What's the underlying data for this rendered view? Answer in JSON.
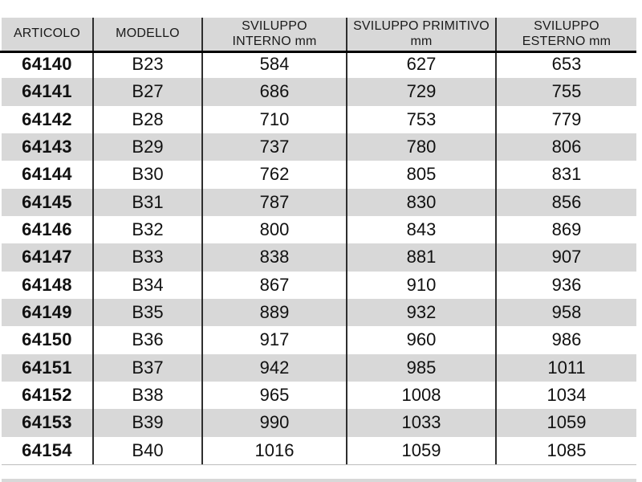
{
  "table": {
    "columns": [
      {
        "id": "articolo",
        "label": "ARTICOLO"
      },
      {
        "id": "modello",
        "label": "MODELLO"
      },
      {
        "id": "sviluppo_interno",
        "label": "SVILUPPO\nINTERNO mm"
      },
      {
        "id": "sviluppo_primitivo",
        "label": "SVILUPPO PRIMITIVO\nmm"
      },
      {
        "id": "sviluppo_esterno",
        "label": "SVILUPPO\nESTERNO mm"
      }
    ],
    "rows": [
      {
        "articolo": "64140",
        "modello": "B23",
        "sviluppo_interno": "584",
        "sviluppo_primitivo": "627",
        "sviluppo_esterno": "653"
      },
      {
        "articolo": "64141",
        "modello": "B27",
        "sviluppo_interno": "686",
        "sviluppo_primitivo": "729",
        "sviluppo_esterno": "755"
      },
      {
        "articolo": "64142",
        "modello": "B28",
        "sviluppo_interno": "710",
        "sviluppo_primitivo": "753",
        "sviluppo_esterno": "779"
      },
      {
        "articolo": "64143",
        "modello": "B29",
        "sviluppo_interno": "737",
        "sviluppo_primitivo": "780",
        "sviluppo_esterno": "806"
      },
      {
        "articolo": "64144",
        "modello": "B30",
        "sviluppo_interno": "762",
        "sviluppo_primitivo": "805",
        "sviluppo_esterno": "831"
      },
      {
        "articolo": "64145",
        "modello": "B31",
        "sviluppo_interno": "787",
        "sviluppo_primitivo": "830",
        "sviluppo_esterno": "856"
      },
      {
        "articolo": "64146",
        "modello": "B32",
        "sviluppo_interno": "800",
        "sviluppo_primitivo": "843",
        "sviluppo_esterno": "869"
      },
      {
        "articolo": "64147",
        "modello": "B33",
        "sviluppo_interno": "838",
        "sviluppo_primitivo": "881",
        "sviluppo_esterno": "907"
      },
      {
        "articolo": "64148",
        "modello": "B34",
        "sviluppo_interno": "867",
        "sviluppo_primitivo": "910",
        "sviluppo_esterno": "936"
      },
      {
        "articolo": "64149",
        "modello": "B35",
        "sviluppo_interno": "889",
        "sviluppo_primitivo": "932",
        "sviluppo_esterno": "958"
      },
      {
        "articolo": "64150",
        "modello": "B36",
        "sviluppo_interno": "917",
        "sviluppo_primitivo": "960",
        "sviluppo_esterno": "986"
      },
      {
        "articolo": "64151",
        "modello": "B37",
        "sviluppo_interno": "942",
        "sviluppo_primitivo": "985",
        "sviluppo_esterno": "1011"
      },
      {
        "articolo": "64152",
        "modello": "B38",
        "sviluppo_interno": "965",
        "sviluppo_primitivo": "1008",
        "sviluppo_esterno": "1034"
      },
      {
        "articolo": "64153",
        "modello": "B39",
        "sviluppo_interno": "990",
        "sviluppo_primitivo": "1033",
        "sviluppo_esterno": "1059"
      },
      {
        "articolo": "64154",
        "modello": "B40",
        "sviluppo_interno": "1016",
        "sviluppo_primitivo": "1059",
        "sviluppo_esterno": "1085"
      }
    ],
    "styling": {
      "header_bg": "#d8d8d8",
      "stripe_color": "#d8d8d8",
      "divider_color": "#2e2e2e",
      "header_rule_color": "#000000",
      "bottom_border_color": "#bdbdbd",
      "text_color": "#111111"
    }
  }
}
